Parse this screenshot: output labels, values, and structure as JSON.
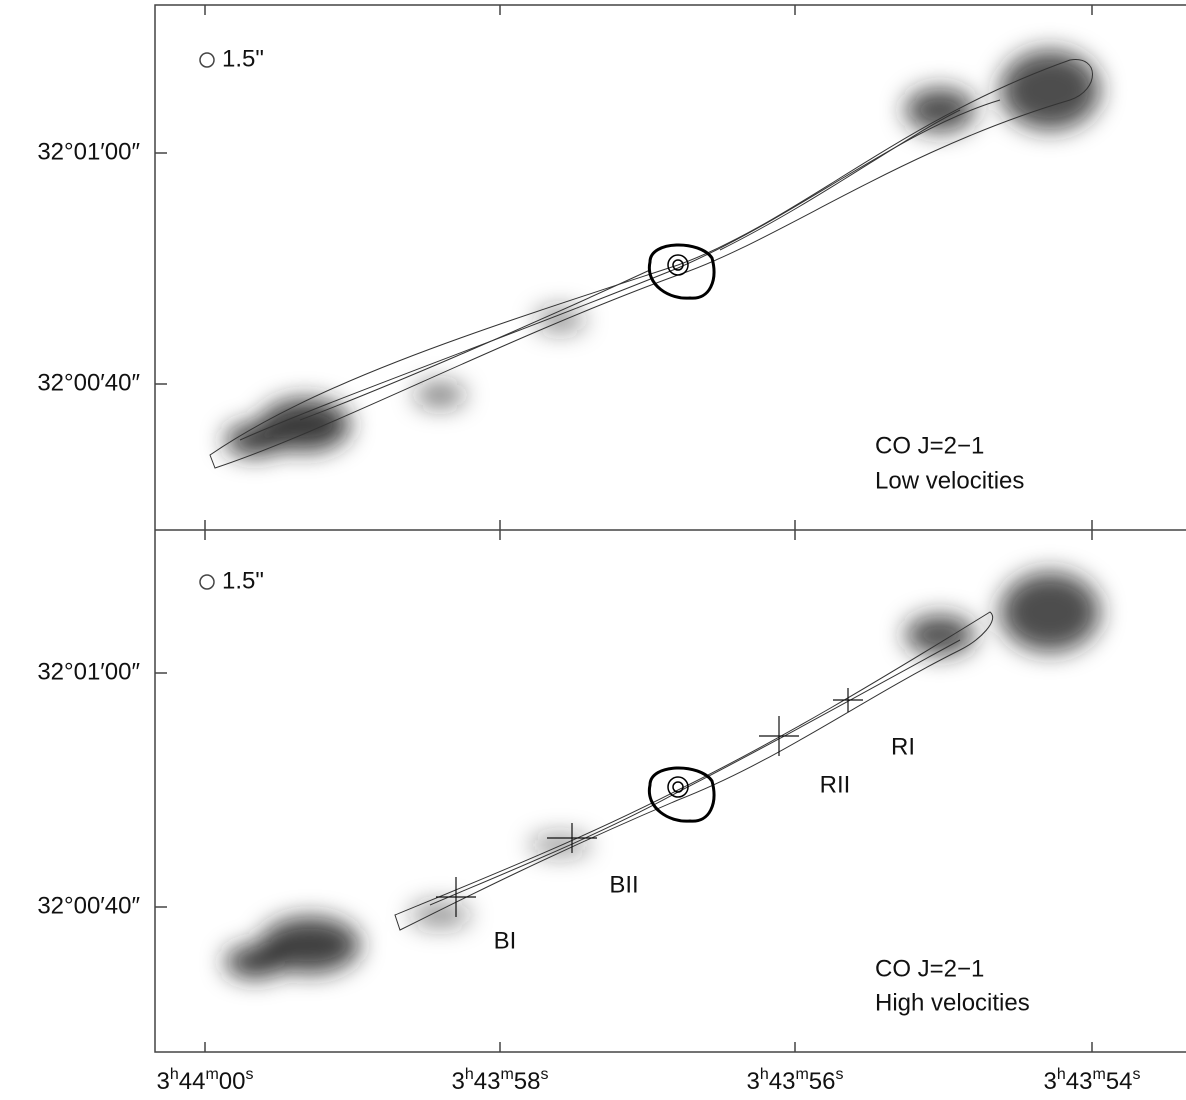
{
  "panels": [
    {
      "beam": "1.5\"",
      "line": "CO J=2−1",
      "range": "Low velocities",
      "yticks": [
        "32°01′00″",
        "32°00′40″"
      ]
    },
    {
      "beam": "1.5\"",
      "line": "CO J=2−1",
      "range": "High velocities",
      "yticks": [
        "32°01′00″",
        "32°00′40″"
      ],
      "knots": [
        "BI",
        "BII",
        "RII",
        "RI"
      ]
    }
  ],
  "xticks": [
    [
      "3",
      "h",
      "44",
      "m",
      "00",
      "s"
    ],
    [
      "3",
      "h",
      "43",
      "m",
      "58",
      "s"
    ],
    [
      "3",
      "h",
      "43",
      "m",
      "56",
      "s"
    ],
    [
      "3",
      "h",
      "43",
      "m",
      "54",
      "s"
    ]
  ]
}
